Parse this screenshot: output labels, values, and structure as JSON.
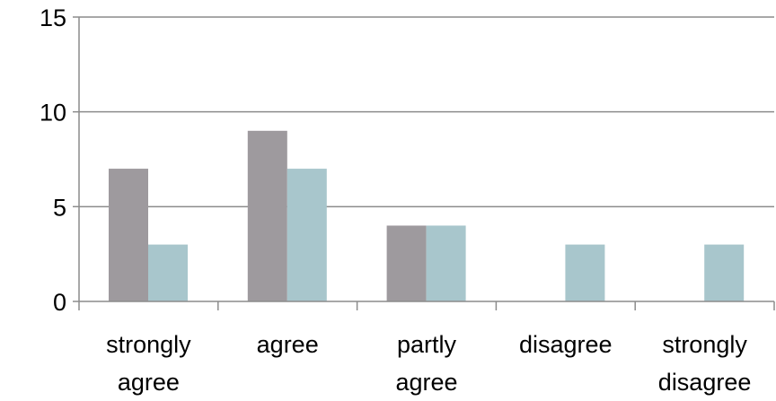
{
  "chart_data": {
    "type": "bar",
    "categories": [
      [
        "strongly",
        "agree"
      ],
      [
        "agree"
      ],
      [
        "partly",
        "agree"
      ],
      [
        "disagree"
      ],
      [
        "strongly",
        "disagree"
      ]
    ],
    "series": [
      {
        "values": [
          7,
          9,
          4,
          0,
          0
        ],
        "color": "#9e9a9e"
      },
      {
        "values": [
          3,
          7,
          4,
          3,
          3
        ],
        "color": "#a8c6cc"
      }
    ],
    "ylim": [
      0,
      15
    ],
    "yticks": [
      0,
      5,
      10,
      15
    ],
    "grid": true,
    "legend": "none",
    "title": "",
    "xlabel": "",
    "ylabel": ""
  }
}
